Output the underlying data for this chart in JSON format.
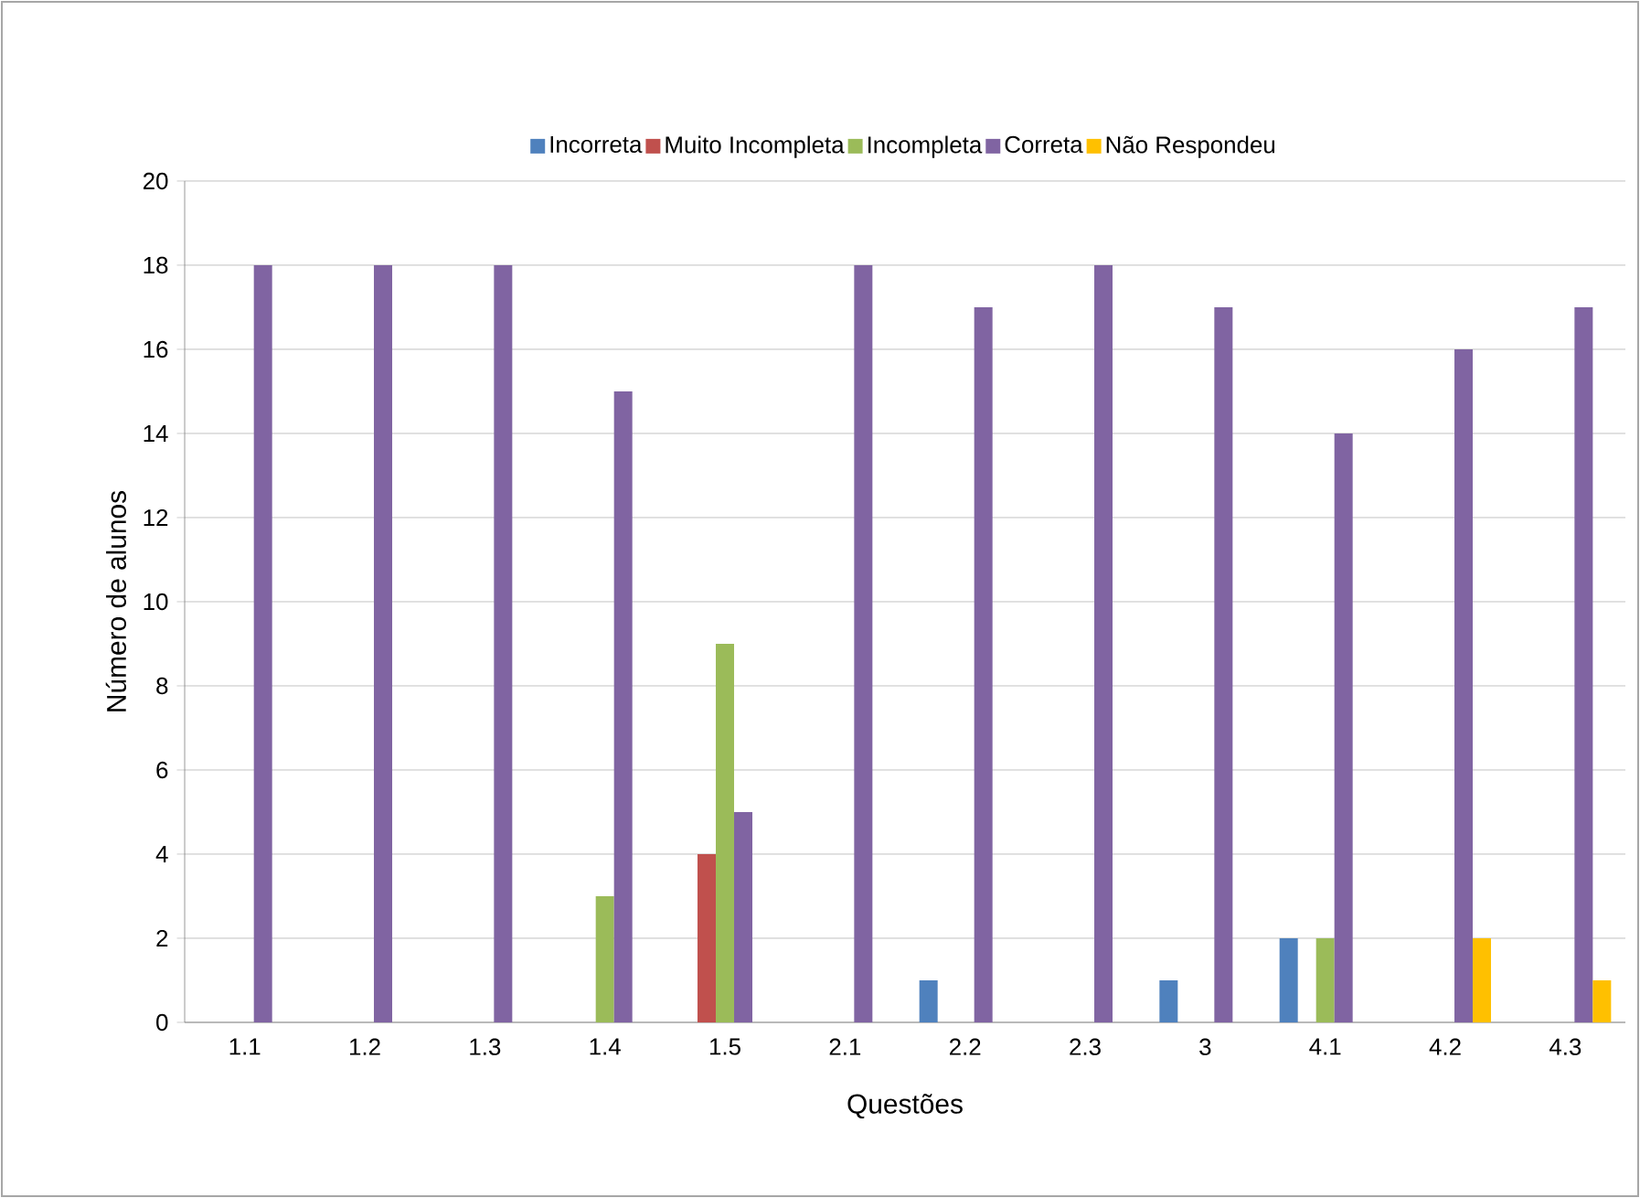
{
  "chart_data": {
    "type": "bar",
    "xlabel": "Questões",
    "ylabel": "Número de alunos",
    "categories": [
      "1.1",
      "1.2",
      "1.3",
      "1.4",
      "1.5",
      "2.1",
      "2.2",
      "2.3",
      "3",
      "4.1",
      "4.2",
      "4.3"
    ],
    "series": [
      {
        "name": "Incorreta",
        "color": "#4f81bd",
        "values": [
          0,
          0,
          0,
          0,
          0,
          0,
          1,
          0,
          1,
          2,
          0,
          0
        ]
      },
      {
        "name": "Muito Incompleta",
        "color": "#c0504d",
        "values": [
          0,
          0,
          0,
          0,
          4,
          0,
          0,
          0,
          0,
          0,
          0,
          0
        ]
      },
      {
        "name": "Incompleta",
        "color": "#9bbb59",
        "values": [
          0,
          0,
          0,
          3,
          9,
          0,
          0,
          0,
          0,
          2,
          0,
          0
        ]
      },
      {
        "name": "Correta",
        "color": "#8064a2",
        "values": [
          18,
          18,
          18,
          15,
          5,
          18,
          17,
          18,
          17,
          14,
          16,
          17
        ]
      },
      {
        "name": "Não Respondeu",
        "color": "#ffc000",
        "values": [
          0,
          0,
          0,
          0,
          0,
          0,
          0,
          0,
          0,
          0,
          2,
          1
        ]
      }
    ],
    "ylim": [
      0,
      20
    ],
    "yticks": [
      0,
      2,
      4,
      6,
      8,
      10,
      12,
      14,
      16,
      18,
      20
    ],
    "grid": "y",
    "legend": "top"
  }
}
